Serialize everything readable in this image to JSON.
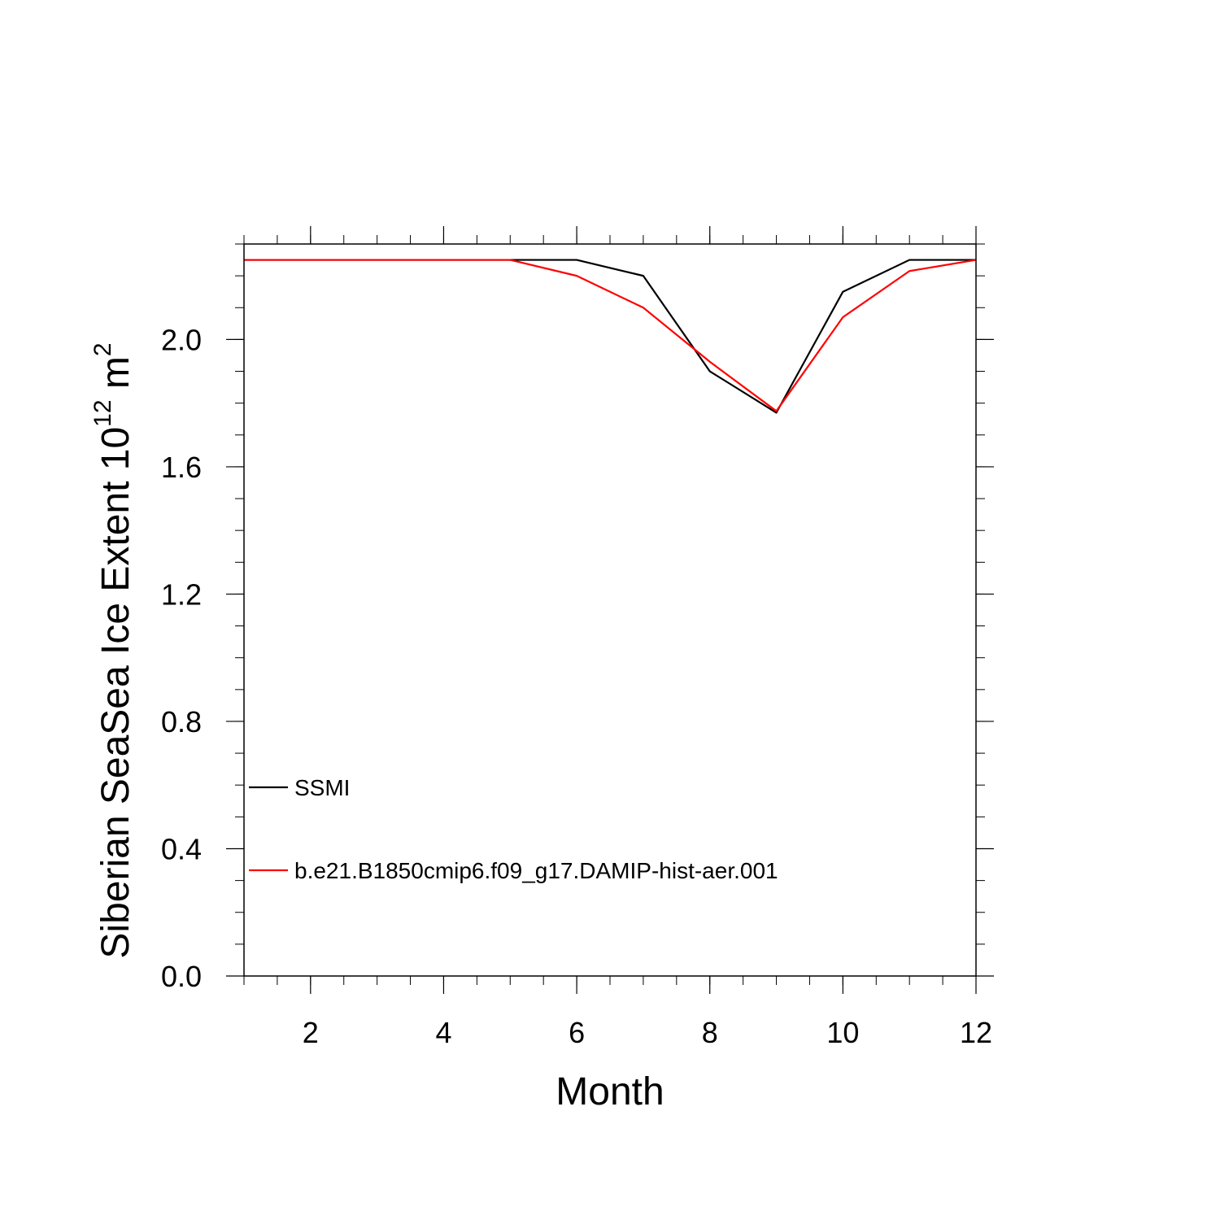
{
  "chart_data": {
    "type": "line",
    "title": "",
    "xlabel": "Month",
    "ylabel_main": "Siberian SeaSea Ice Extent 10",
    "ylabel_exponent": "12",
    "ylabel_unit": " m",
    "ylabel_unit_exponent": "2",
    "xlim": [
      1,
      12
    ],
    "ylim": [
      0,
      2.3
    ],
    "x_major_ticks": [
      2,
      4,
      6,
      8,
      10,
      12
    ],
    "x_tick_labels": [
      "2",
      "4",
      "6",
      "8",
      "10",
      "12"
    ],
    "y_major_ticks": [
      0,
      0.4,
      0.8,
      1.2,
      1.6,
      2.0
    ],
    "y_tick_labels": [
      "0.0",
      "0.4",
      "0.8",
      "1.2",
      "1.6",
      "2.0"
    ],
    "grid": false,
    "legend_position": "lower-left",
    "x": [
      1,
      2,
      3,
      4,
      5,
      6,
      7,
      8,
      9,
      10,
      11,
      12
    ],
    "series": [
      {
        "name": "SSMI",
        "color": "#000000",
        "values": [
          2.25,
          2.25,
          2.25,
          2.25,
          2.25,
          2.25,
          2.2,
          1.9,
          1.77,
          2.15,
          2.25,
          2.25
        ]
      },
      {
        "name": "b.e21.B1850cmip6.f09_g17.DAMIP-hist-aer.001",
        "color": "#ff0000",
        "values": [
          2.25,
          2.25,
          2.25,
          2.25,
          2.25,
          2.2,
          2.1,
          1.93,
          1.775,
          2.07,
          2.215,
          2.25
        ]
      }
    ]
  }
}
